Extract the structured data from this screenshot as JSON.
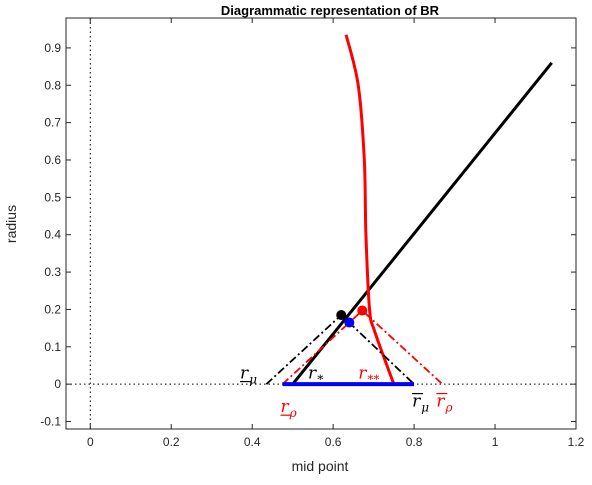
{
  "chart_data": {
    "type": "line",
    "title": "Diagrammatic representation of BR",
    "xlabel": "mid point",
    "ylabel": "radius",
    "xlim": [
      -0.06,
      1.2
    ],
    "ylim": [
      -0.12,
      0.98
    ],
    "xticks": [
      0,
      0.2,
      0.4,
      0.6,
      0.8,
      1,
      1.2
    ],
    "xtick_labels": [
      "0",
      "0.2",
      "0.4",
      "0.6",
      "0.8",
      "1",
      "1.2"
    ],
    "yticks": [
      -0.1,
      0,
      0.1,
      0.2,
      0.3,
      0.4,
      0.5,
      0.6,
      0.7,
      0.8,
      0.9
    ],
    "ytick_labels": [
      "-0.1",
      "0",
      "0.1",
      "0.2",
      "0.3",
      "0.4",
      "0.5",
      "0.6",
      "0.7",
      "0.8",
      "0.9"
    ],
    "grid": false,
    "series": [
      {
        "color": "#000000",
        "style": "solid",
        "width": 3,
        "points": [
          [
            0.5,
            0
          ],
          [
            1.14,
            0.86
          ]
        ]
      },
      {
        "color": "#ff0000",
        "style": "curve",
        "width": 3,
        "points": [
          [
            0.632,
            0.935
          ],
          [
            0.662,
            0.8
          ],
          [
            0.677,
            0.6
          ],
          [
            0.681,
            0.4
          ],
          [
            0.69,
            0.2
          ],
          [
            0.703,
            0.14
          ],
          [
            0.75,
            0
          ]
        ]
      },
      {
        "color": "#000000",
        "style": "dashdot",
        "width": 1.8,
        "points": [
          [
            0.435,
            0
          ],
          [
            0.62,
            0.185
          ],
          [
            0.8,
            0
          ]
        ]
      },
      {
        "color": "#ff0000",
        "style": "dashdot",
        "width": 1.8,
        "points": [
          [
            0.475,
            0
          ],
          [
            0.672,
            0.197
          ],
          [
            0.87,
            0
          ]
        ]
      },
      {
        "color": "#0000ff",
        "style": "solid",
        "width": 4,
        "points": [
          [
            0.475,
            0
          ],
          [
            0.8,
            0
          ]
        ]
      }
    ],
    "reference_lines": [
      {
        "axis": "x",
        "value": 0,
        "color": "#000000",
        "style": "dotted"
      },
      {
        "axis": "y",
        "value": 0,
        "color": "#000000",
        "style": "dotted"
      }
    ],
    "markers": [
      {
        "x": 0.62,
        "y": 0.185,
        "color": "#000000"
      },
      {
        "x": 0.64,
        "y": 0.165,
        "color": "#0000ff"
      },
      {
        "x": 0.672,
        "y": 0.197,
        "color": "#ff0000"
      }
    ],
    "annotations": [
      {
        "base": "r",
        "sub": "μ",
        "decoration": "underline",
        "color": "#000000",
        "x": 0.37,
        "y": 0.015
      },
      {
        "base": "r",
        "sub": "*",
        "decoration": "none",
        "color": "#000000",
        "x": 0.538,
        "y": 0.015
      },
      {
        "base": "r",
        "sub": "**",
        "decoration": "none",
        "color": "#ff0000",
        "x": 0.662,
        "y": 0.015
      },
      {
        "base": "r",
        "sub": "ρ",
        "decoration": "underline",
        "color": "#ff0000",
        "x": 0.47,
        "y": -0.075
      },
      {
        "base": "r",
        "sub": "μ",
        "decoration": "overline",
        "color": "#000000",
        "x": 0.795,
        "y": -0.06
      },
      {
        "base": "r",
        "sub": "ρ",
        "decoration": "overline",
        "color": "#ff0000",
        "x": 0.855,
        "y": -0.06
      }
    ]
  }
}
